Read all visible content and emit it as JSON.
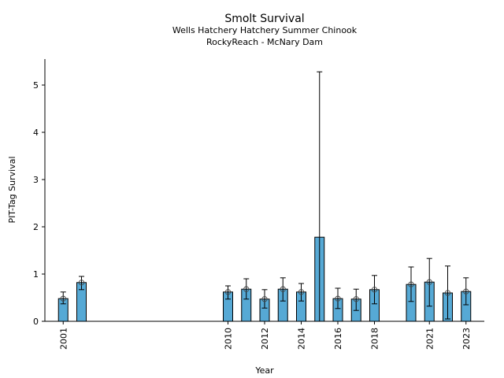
{
  "chart_data": {
    "type": "bar",
    "title": "Smolt Survival",
    "subtitle_lines": [
      "Wells Hatchery Hatchery Summer Chinook",
      "RockyReach - McNary Dam"
    ],
    "xlabel": "Year",
    "ylabel": "PIT-Tag Survival",
    "xlim": [
      2000,
      2024
    ],
    "ylim": [
      0,
      5.55
    ],
    "xticks": [
      2001,
      2010,
      2012,
      2014,
      2016,
      2018,
      2021,
      2023
    ],
    "yticks": [
      0,
      1,
      2,
      3,
      4,
      5
    ],
    "grid": false,
    "bar_color": "#56a9d5",
    "x": [
      2001,
      2002,
      2010,
      2011,
      2012,
      2013,
      2014,
      2015,
      2016,
      2017,
      2018,
      2020,
      2021,
      2022,
      2023
    ],
    "values": [
      0.48,
      0.82,
      0.62,
      0.68,
      0.47,
      0.68,
      0.62,
      1.78,
      0.48,
      0.47,
      0.67,
      0.78,
      0.83,
      0.6,
      0.63
    ],
    "err_low": [
      0.37,
      0.67,
      0.47,
      0.47,
      0.28,
      0.43,
      0.43,
      0.0,
      0.27,
      0.23,
      0.37,
      0.42,
      0.32,
      0.05,
      0.35
    ],
    "err_high": [
      0.62,
      0.95,
      0.75,
      0.9,
      0.67,
      0.92,
      0.8,
      5.28,
      0.7,
      0.68,
      0.97,
      1.15,
      1.33,
      1.17,
      0.92
    ]
  }
}
